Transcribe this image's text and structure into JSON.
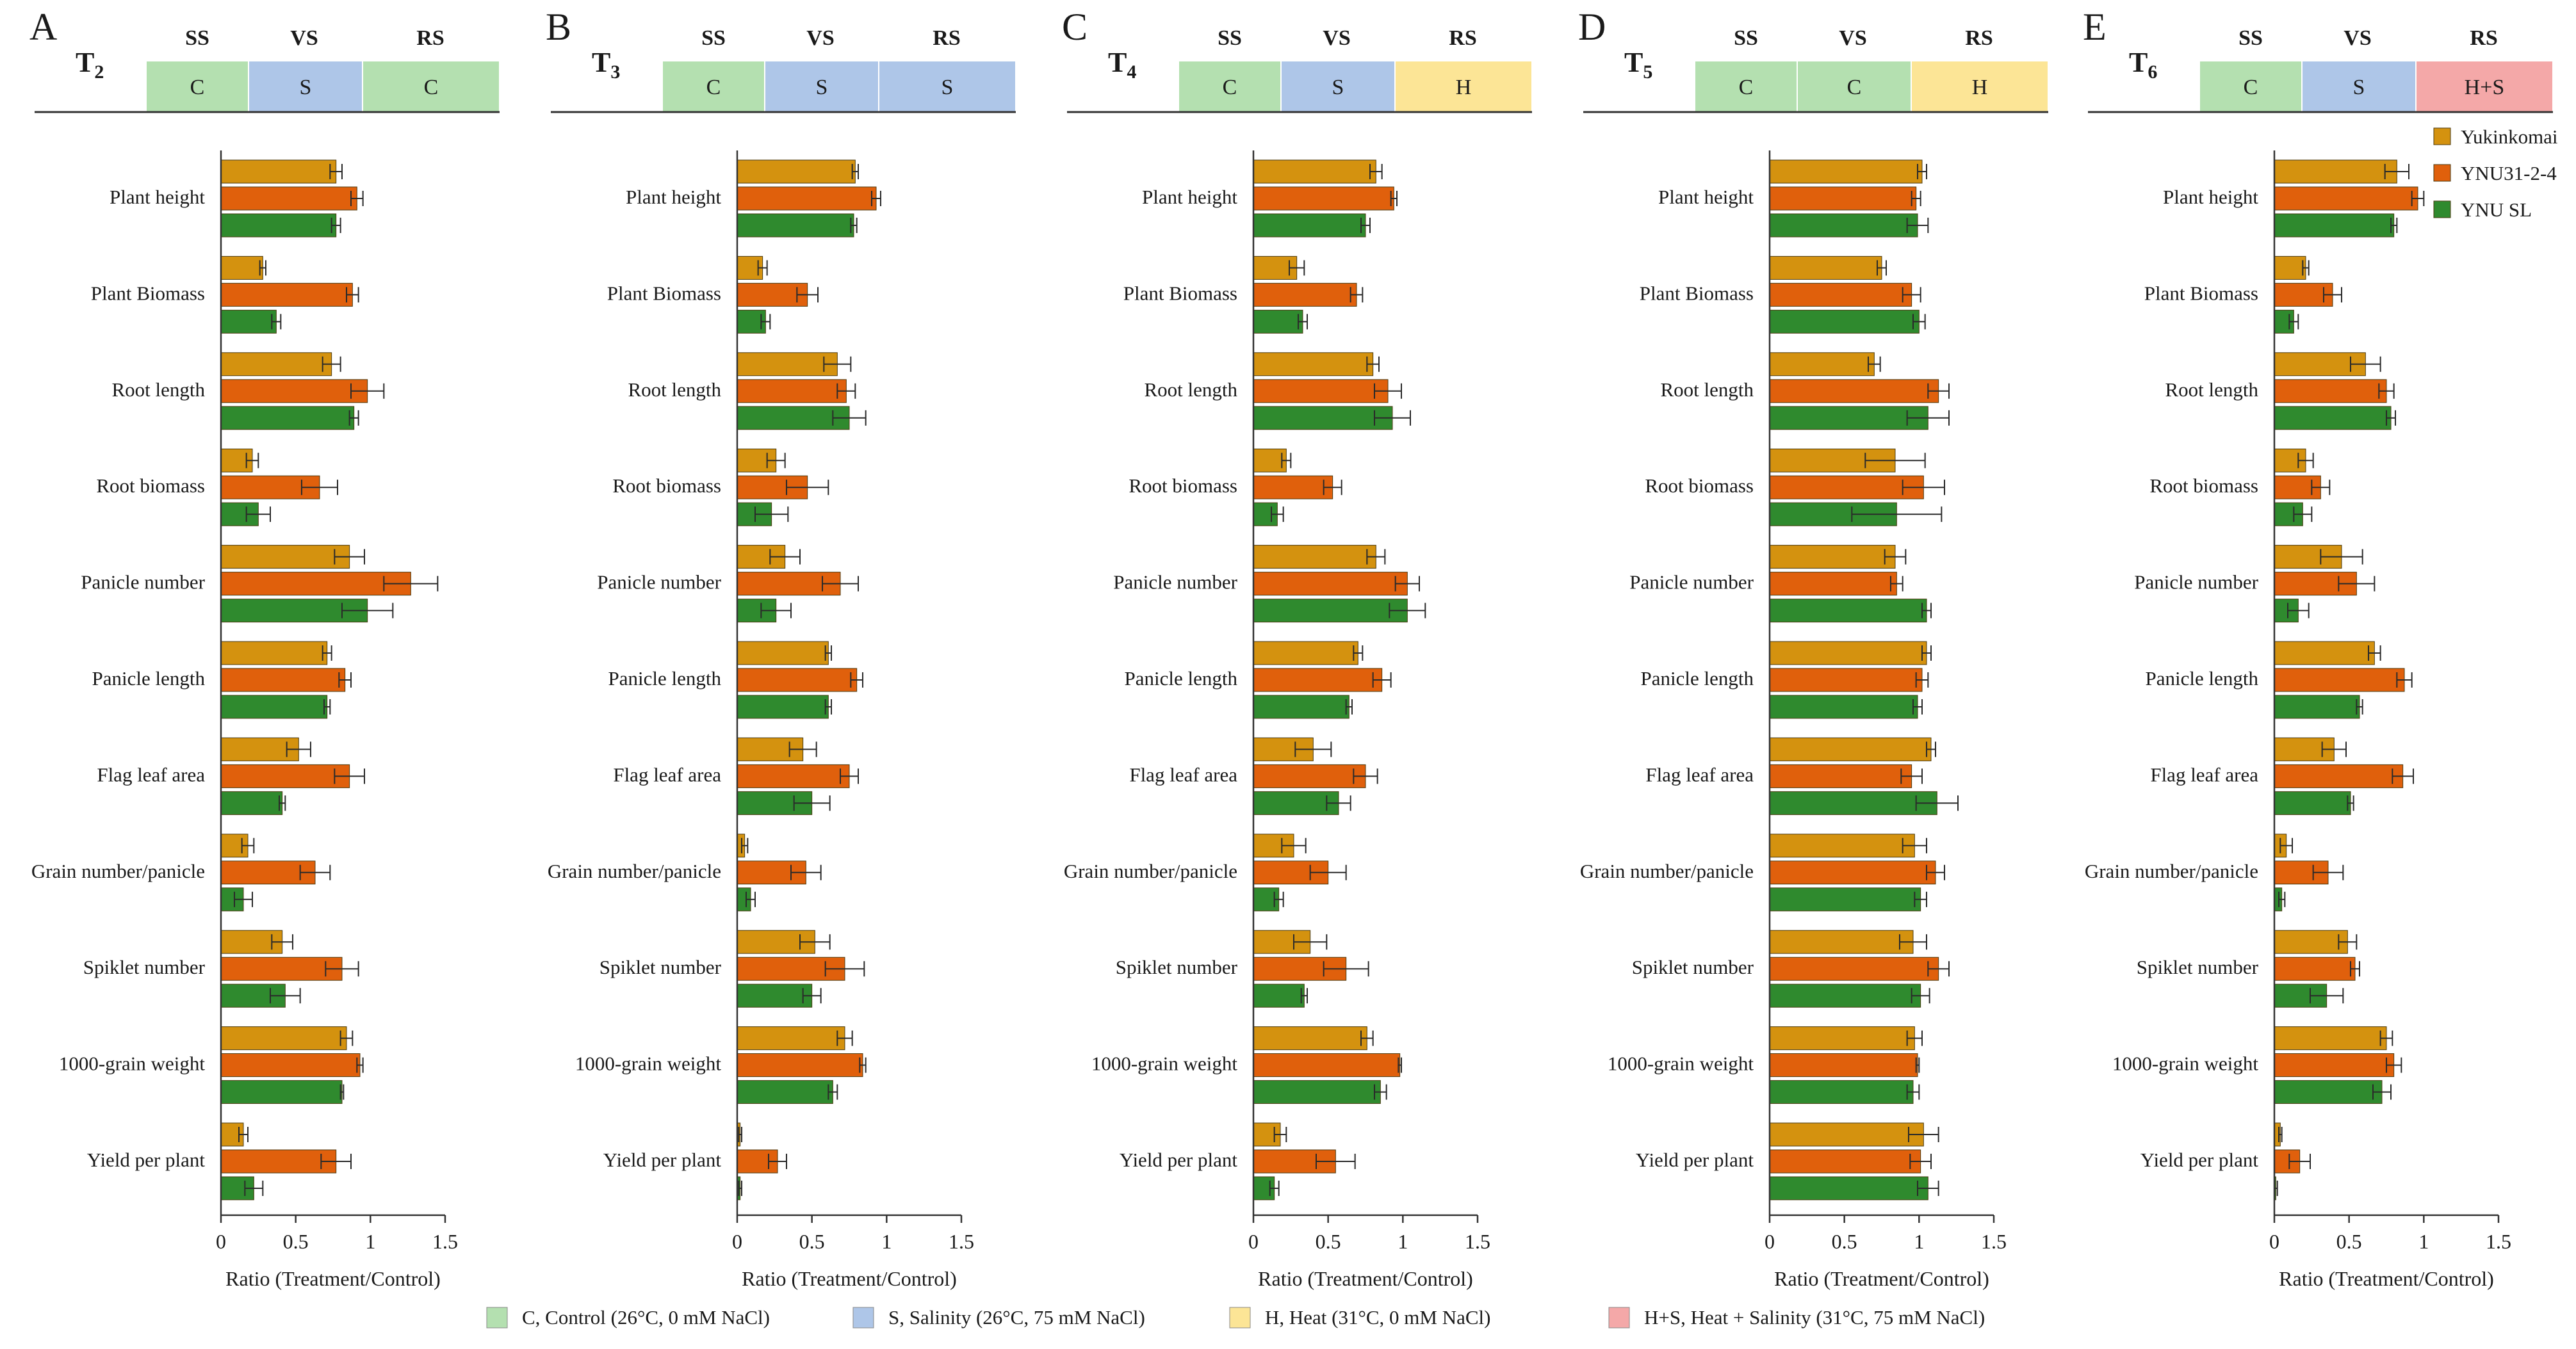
{
  "colors": {
    "yukinkomai": "#D4920F",
    "ynu3124": "#E0600C",
    "ynusl": "#2F8A2E",
    "control": "#B4E0B0",
    "salinity": "#AEC6E8",
    "heat": "#FCE596",
    "heat_salinity": "#F4A8A8"
  },
  "stage_headers": [
    "SS",
    "VS",
    "RS"
  ],
  "legend_series": [
    "Yukinkomai",
    "YNU31-2-4",
    "YNU SL"
  ],
  "condition_legend": [
    {
      "code": "C",
      "label": "C, Control (26°C, 0 mM NaCl)",
      "color": "#B4E0B0"
    },
    {
      "code": "S",
      "label": "S, Salinity (26°C, 75 mM NaCl)",
      "color": "#AEC6E8"
    },
    {
      "code": "H",
      "label": "H, Heat (31°C, 0 mM NaCl)",
      "color": "#FCE596"
    },
    {
      "code": "H+S",
      "label": "H+S, Heat + Salinity (31°C, 75 mM NaCl)",
      "color": "#F4A8A8"
    }
  ],
  "chart_data": [
    {
      "type": "bar",
      "orientation": "horizontal",
      "panel": "A",
      "treatment_base": "T",
      "treatment_sub": "2",
      "stages": [
        {
          "code": "C",
          "color": "#B4E0B0"
        },
        {
          "code": "S",
          "color": "#AEC6E8"
        },
        {
          "code": "C",
          "color": "#B4E0B0"
        }
      ],
      "xlabel": "Ratio (Treatment/Control)",
      "xlim": [
        0,
        1.5
      ],
      "xticks": [
        "0",
        "0.5",
        "1",
        "1.5"
      ],
      "categories": [
        "Plant height",
        "Plant Biomass",
        "Root length",
        "Root biomass",
        "Panicle number",
        "Panicle length",
        "Flag leaf area",
        "Grain number/panicle",
        "Spiklet number",
        "1000-grain weight",
        "Yield per plant"
      ],
      "series": [
        {
          "name": "Yukinkomai",
          "values": [
            0.77,
            0.28,
            0.74,
            0.21,
            0.86,
            0.71,
            0.52,
            0.18,
            0.41,
            0.84,
            0.15
          ],
          "errors": [
            0.04,
            0.02,
            0.06,
            0.04,
            0.1,
            0.03,
            0.08,
            0.04,
            0.07,
            0.04,
            0.03
          ]
        },
        {
          "name": "YNU31-2-4",
          "values": [
            0.91,
            0.88,
            0.98,
            0.66,
            1.27,
            0.83,
            0.86,
            0.63,
            0.81,
            0.93,
            0.77
          ],
          "errors": [
            0.04,
            0.04,
            0.11,
            0.12,
            0.18,
            0.04,
            0.1,
            0.1,
            0.11,
            0.02,
            0.1
          ]
        },
        {
          "name": "YNU SL",
          "values": [
            0.77,
            0.37,
            0.89,
            0.25,
            0.98,
            0.71,
            0.41,
            0.15,
            0.43,
            0.81,
            0.22
          ],
          "errors": [
            0.03,
            0.03,
            0.03,
            0.08,
            0.17,
            0.02,
            0.02,
            0.06,
            0.1,
            0.01,
            0.06
          ]
        }
      ]
    },
    {
      "type": "bar",
      "orientation": "horizontal",
      "panel": "B",
      "treatment_base": "T",
      "treatment_sub": "3",
      "stages": [
        {
          "code": "C",
          "color": "#B4E0B0"
        },
        {
          "code": "S",
          "color": "#AEC6E8"
        },
        {
          "code": "S",
          "color": "#AEC6E8"
        }
      ],
      "xlabel": "Ratio (Treatment/Control)",
      "xlim": [
        0,
        1.5
      ],
      "xticks": [
        "0",
        "0.5",
        "1",
        "1.5"
      ],
      "categories": [
        "Plant height",
        "Plant Biomass",
        "Root length",
        "Root biomass",
        "Panicle number",
        "Panicle length",
        "Flag leaf area",
        "Grain number/panicle",
        "Spiklet number",
        "1000-grain weight",
        "Yield per plant"
      ],
      "series": [
        {
          "name": "Yukinkomai",
          "values": [
            0.79,
            0.17,
            0.67,
            0.26,
            0.32,
            0.61,
            0.44,
            0.05,
            0.52,
            0.72,
            0.02
          ],
          "errors": [
            0.02,
            0.03,
            0.09,
            0.06,
            0.1,
            0.02,
            0.09,
            0.02,
            0.1,
            0.05,
            0.01
          ]
        },
        {
          "name": "YNU31-2-4",
          "values": [
            0.93,
            0.47,
            0.73,
            0.47,
            0.69,
            0.8,
            0.75,
            0.46,
            0.72,
            0.84,
            0.27
          ],
          "errors": [
            0.03,
            0.07,
            0.06,
            0.14,
            0.12,
            0.04,
            0.06,
            0.1,
            0.13,
            0.02,
            0.06
          ]
        },
        {
          "name": "YNU SL",
          "values": [
            0.78,
            0.19,
            0.75,
            0.23,
            0.26,
            0.61,
            0.5,
            0.09,
            0.5,
            0.64,
            0.02
          ],
          "errors": [
            0.02,
            0.03,
            0.11,
            0.11,
            0.1,
            0.02,
            0.12,
            0.03,
            0.06,
            0.03,
            0.01
          ]
        }
      ]
    },
    {
      "type": "bar",
      "orientation": "horizontal",
      "panel": "C",
      "treatment_base": "T",
      "treatment_sub": "4",
      "stages": [
        {
          "code": "C",
          "color": "#B4E0B0"
        },
        {
          "code": "S",
          "color": "#AEC6E8"
        },
        {
          "code": "H",
          "color": "#FCE596"
        }
      ],
      "xlabel": "Ratio (Treatment/Control)",
      "xlim": [
        0,
        1.5
      ],
      "xticks": [
        "0",
        "0.5",
        "1",
        "1.5"
      ],
      "categories": [
        "Plant height",
        "Plant Biomass",
        "Root length",
        "Root biomass",
        "Panicle number",
        "Panicle length",
        "Flag leaf area",
        "Grain number/panicle",
        "Spiklet number",
        "1000-grain weight",
        "Yield per plant"
      ],
      "series": [
        {
          "name": "Yukinkomai",
          "values": [
            0.82,
            0.29,
            0.8,
            0.22,
            0.82,
            0.7,
            0.4,
            0.27,
            0.38,
            0.76,
            0.18
          ],
          "errors": [
            0.04,
            0.05,
            0.04,
            0.03,
            0.06,
            0.03,
            0.12,
            0.08,
            0.11,
            0.04,
            0.04
          ]
        },
        {
          "name": "YNU31-2-4",
          "values": [
            0.94,
            0.69,
            0.9,
            0.53,
            1.03,
            0.86,
            0.75,
            0.5,
            0.62,
            0.98,
            0.55
          ],
          "errors": [
            0.02,
            0.04,
            0.09,
            0.06,
            0.08,
            0.06,
            0.08,
            0.12,
            0.15,
            0.01,
            0.13
          ]
        },
        {
          "name": "YNU SL",
          "values": [
            0.75,
            0.33,
            0.93,
            0.16,
            1.03,
            0.64,
            0.57,
            0.17,
            0.34,
            0.85,
            0.14
          ],
          "errors": [
            0.03,
            0.03,
            0.12,
            0.04,
            0.12,
            0.02,
            0.08,
            0.03,
            0.02,
            0.04,
            0.03
          ]
        }
      ]
    },
    {
      "type": "bar",
      "orientation": "horizontal",
      "panel": "D",
      "treatment_base": "T",
      "treatment_sub": "5",
      "stages": [
        {
          "code": "C",
          "color": "#B4E0B0"
        },
        {
          "code": "C",
          "color": "#B4E0B0"
        },
        {
          "code": "H",
          "color": "#FCE596"
        }
      ],
      "xlabel": "Ratio (Treatment/Control)",
      "xlim": [
        0,
        1.5
      ],
      "xticks": [
        "0",
        "0.5",
        "1",
        "1.5"
      ],
      "categories": [
        "Plant height",
        "Plant Biomass",
        "Root length",
        "Root biomass",
        "Panicle number",
        "Panicle length",
        "Flag leaf area",
        "Grain number/panicle",
        "Spiklet number",
        "1000-grain weight",
        "Yield per plant"
      ],
      "series": [
        {
          "name": "Yukinkomai",
          "values": [
            1.02,
            0.75,
            0.7,
            0.84,
            0.84,
            1.05,
            1.08,
            0.97,
            0.96,
            0.97,
            1.03
          ],
          "errors": [
            0.03,
            0.03,
            0.04,
            0.2,
            0.07,
            0.03,
            0.03,
            0.08,
            0.09,
            0.05,
            0.1
          ]
        },
        {
          "name": "YNU31-2-4",
          "values": [
            0.98,
            0.95,
            1.13,
            1.03,
            0.85,
            1.02,
            0.95,
            1.11,
            1.13,
            0.99,
            1.01
          ],
          "errors": [
            0.03,
            0.06,
            0.07,
            0.14,
            0.04,
            0.04,
            0.07,
            0.06,
            0.07,
            0.01,
            0.07
          ]
        },
        {
          "name": "YNU SL",
          "values": [
            0.99,
            1.0,
            1.06,
            0.85,
            1.05,
            0.99,
            1.12,
            1.01,
            1.01,
            0.96,
            1.06
          ],
          "errors": [
            0.07,
            0.04,
            0.14,
            0.3,
            0.03,
            0.03,
            0.14,
            0.04,
            0.06,
            0.04,
            0.07
          ]
        }
      ]
    },
    {
      "type": "bar",
      "orientation": "horizontal",
      "panel": "E",
      "treatment_base": "T",
      "treatment_sub": "6",
      "stages": [
        {
          "code": "C",
          "color": "#B4E0B0"
        },
        {
          "code": "S",
          "color": "#AEC6E8"
        },
        {
          "code": "H+S",
          "color": "#F4A8A8"
        }
      ],
      "xlabel": "Ratio (Treatment/Control)",
      "xlim": [
        0,
        1.5
      ],
      "xticks": [
        "0",
        "0.5",
        "1",
        "1.5"
      ],
      "categories": [
        "Plant height",
        "Plant Biomass",
        "Root length",
        "Root biomass",
        "Panicle number",
        "Panicle length",
        "Flag leaf area",
        "Grain number/panicle",
        "Spiklet number",
        "1000-grain weight",
        "Yield per plant"
      ],
      "series": [
        {
          "name": "Yukinkomai",
          "values": [
            0.82,
            0.21,
            0.61,
            0.21,
            0.45,
            0.67,
            0.4,
            0.08,
            0.49,
            0.75,
            0.04
          ],
          "errors": [
            0.08,
            0.02,
            0.1,
            0.05,
            0.14,
            0.04,
            0.08,
            0.04,
            0.06,
            0.04,
            0.01
          ]
        },
        {
          "name": "YNU31-2-4",
          "values": [
            0.96,
            0.39,
            0.75,
            0.31,
            0.55,
            0.87,
            0.86,
            0.36,
            0.54,
            0.8,
            0.17
          ],
          "errors": [
            0.04,
            0.06,
            0.05,
            0.06,
            0.12,
            0.05,
            0.07,
            0.1,
            0.03,
            0.05,
            0.07
          ]
        },
        {
          "name": "YNU SL",
          "values": [
            0.8,
            0.13,
            0.78,
            0.19,
            0.16,
            0.57,
            0.51,
            0.05,
            0.35,
            0.72,
            0.01
          ],
          "errors": [
            0.02,
            0.03,
            0.03,
            0.06,
            0.07,
            0.02,
            0.02,
            0.02,
            0.11,
            0.06,
            0.01
          ]
        }
      ]
    }
  ]
}
